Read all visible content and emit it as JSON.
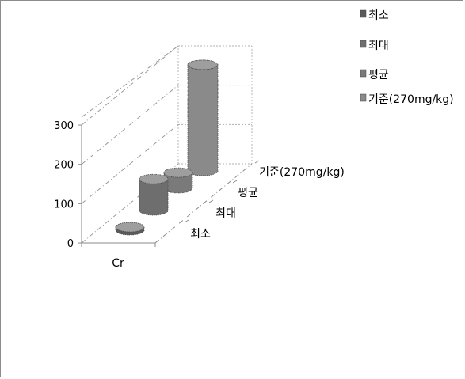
{
  "chart_data": {
    "type": "bar",
    "style": "3d-cylinder",
    "categories": [
      "Cr"
    ],
    "series": [
      {
        "name": "최소",
        "values": [
          8
        ],
        "color": "#5a5a5a"
      },
      {
        "name": "최대",
        "values": [
          80
        ],
        "color": "#6e6e6e"
      },
      {
        "name": "평균",
        "values": [
          40
        ],
        "color": "#7a7a7a"
      },
      {
        "name": "기준(270mg/kg)",
        "values": [
          270
        ],
        "color": "#8a8a8a"
      }
    ],
    "yticks": [
      0,
      100,
      200,
      300
    ],
    "ylim": [
      0,
      300
    ],
    "legend": "top-right",
    "grid": true
  }
}
